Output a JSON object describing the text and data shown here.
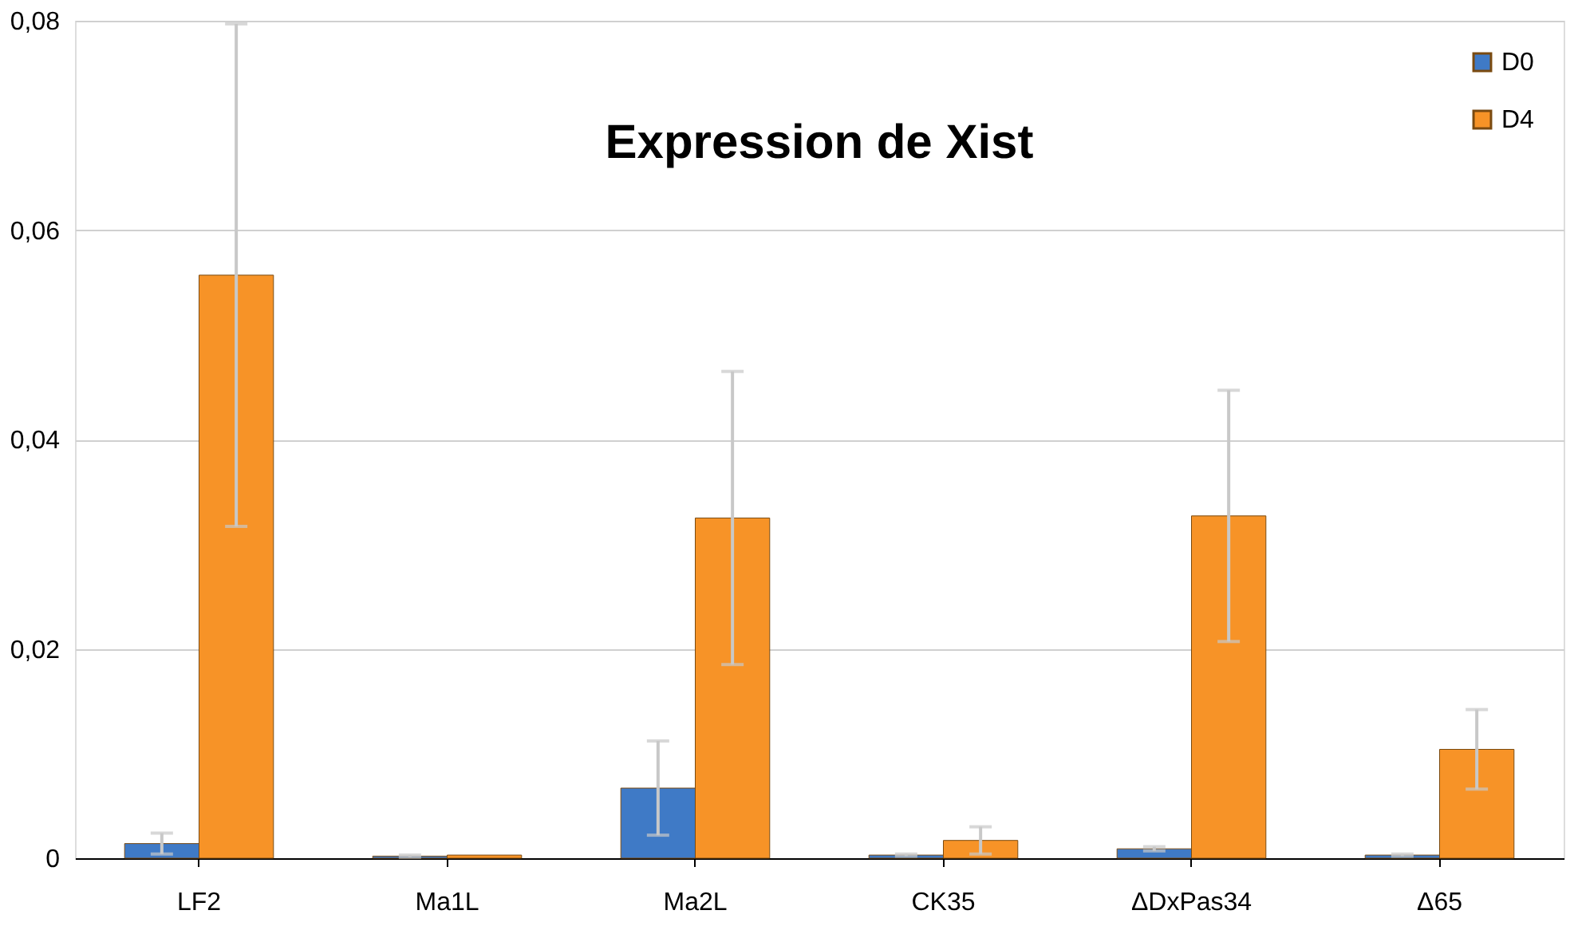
{
  "chart_data": {
    "type": "bar",
    "title": "Expression de Xist",
    "categories": [
      "LF2",
      "Ma1L",
      "Ma2L",
      "CK35",
      "ΔDxPas34",
      "Δ65"
    ],
    "series": [
      {
        "name": "D0",
        "color": "#3f7ac6",
        "values": [
          0.0014,
          0.0002,
          0.0067,
          0.0003,
          0.0009,
          0.0003
        ],
        "errors": [
          0.001,
          0.0001,
          0.0045,
          0.0001,
          0.0002,
          0.0001
        ]
      },
      {
        "name": "D4",
        "color": "#f79327",
        "values": [
          0.0557,
          0.0003,
          0.0325,
          0.0017,
          0.0327,
          0.0104
        ],
        "errors": [
          0.024,
          null,
          0.014,
          0.0013,
          0.012,
          0.0038
        ]
      }
    ],
    "ylim": [
      0,
      0.08
    ],
    "yticks": [
      0,
      {
        "value": 0.02,
        "label": "0,02"
      },
      {
        "value": 0.04,
        "label": "0,04"
      },
      {
        "value": 0.06,
        "label": "0,06"
      },
      {
        "value": 0.08,
        "label": "0,08"
      }
    ],
    "grid": "y",
    "legend": "top right"
  }
}
